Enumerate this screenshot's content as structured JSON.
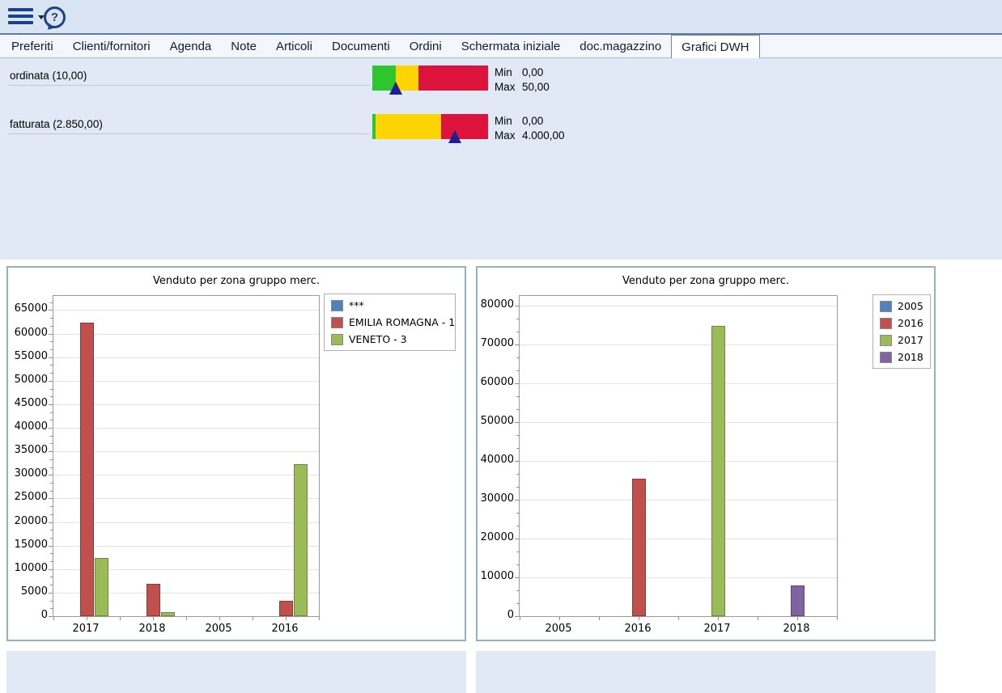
{
  "toolbar": {
    "help_glyph": "?"
  },
  "tabs": [
    {
      "label": "Preferiti",
      "active": false
    },
    {
      "label": "Clienti/fornitori",
      "active": false
    },
    {
      "label": "Agenda",
      "active": false
    },
    {
      "label": "Note",
      "active": false
    },
    {
      "label": "Articoli",
      "active": false
    },
    {
      "label": "Documenti",
      "active": false
    },
    {
      "label": "Ordini",
      "active": false
    },
    {
      "label": "Schermata iniziale",
      "active": false
    },
    {
      "label": "doc.magazzino",
      "active": false
    },
    {
      "label": "Grafici DWH",
      "active": true
    }
  ],
  "gauges": [
    {
      "label": "ordinata (10,00)",
      "min_label": "Min",
      "min_value": "0,00",
      "max_label": "Max",
      "max_value": "50,00",
      "marker_pct": 20,
      "marker_color": "#1e1e96",
      "segments": [
        {
          "name": "green",
          "color": "#2ec62e",
          "pct": 20
        },
        {
          "name": "yellow",
          "color": "#ffd400",
          "pct": 20
        },
        {
          "name": "red",
          "color": "#dc143c",
          "pct": 60
        }
      ]
    },
    {
      "label": "fatturata (2.850,00)",
      "min_label": "Min",
      "min_value": "0,00",
      "max_label": "Max",
      "max_value": "4.000,00",
      "marker_pct": 71.25,
      "marker_color": "#1e1e96",
      "segments": [
        {
          "name": "green",
          "color": "#2ec62e",
          "pct": 3
        },
        {
          "name": "yellow",
          "color": "#ffd400",
          "pct": 56.5
        },
        {
          "name": "red",
          "color": "#dc143c",
          "pct": 40.5
        }
      ]
    }
  ],
  "chart_data": [
    {
      "type": "bar",
      "title": "Venduto per zona gruppo merc.",
      "categories": [
        "2017",
        "2018",
        "2005",
        "2016"
      ],
      "series": [
        {
          "name": "***",
          "color": "#4f81bd",
          "values": [
            0,
            0,
            0,
            0
          ]
        },
        {
          "name": "EMILIA ROMAGNA - 1",
          "color": "#c0504d",
          "values": [
            62400,
            6900,
            0,
            3200
          ]
        },
        {
          "name": "VENETO - 3",
          "color": "#9bbb59",
          "values": [
            12400,
            900,
            0,
            32200
          ]
        }
      ],
      "ylim": [
        0,
        68000
      ],
      "yticks": [
        0,
        5000,
        10000,
        15000,
        20000,
        25000,
        30000,
        35000,
        40000,
        45000,
        50000,
        55000,
        60000,
        65000
      ],
      "grid": true,
      "legend_position": "right"
    },
    {
      "type": "bar",
      "title": "Venduto per zona gruppo merc.",
      "categories": [
        "2005",
        "2016",
        "2017",
        "2018"
      ],
      "values": [
        0,
        35500,
        74700,
        7900
      ],
      "bar_colors": [
        "#4f81bd",
        "#c0504d",
        "#9bbb59",
        "#8064a2"
      ],
      "legend": [
        {
          "label": "2005",
          "color": "#4f81bd"
        },
        {
          "label": "2016",
          "color": "#c0504d"
        },
        {
          "label": "2017",
          "color": "#9bbb59"
        },
        {
          "label": "2018",
          "color": "#8064a2"
        }
      ],
      "ylim": [
        0,
        82500
      ],
      "yticks": [
        0,
        10000,
        20000,
        30000,
        40000,
        50000,
        60000,
        70000,
        80000
      ],
      "grid": true,
      "legend_position": "right"
    }
  ]
}
